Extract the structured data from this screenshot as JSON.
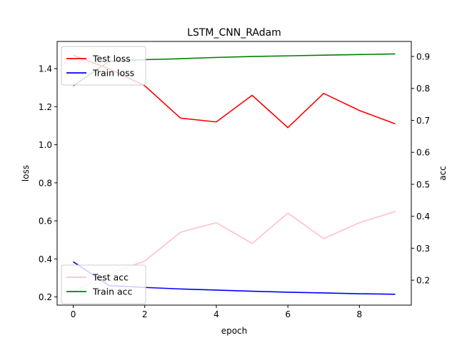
{
  "chart_data": {
    "type": "line",
    "title": "LSTM_CNN_RAdam",
    "xlabel": "epoch",
    "ylabel_left": "loss",
    "ylabel_right": "acc",
    "x": [
      0,
      1,
      2,
      3,
      4,
      5,
      6,
      7,
      8,
      9
    ],
    "xlim": [
      -0.45,
      9.45
    ],
    "ylim_left": [
      0.157,
      1.543
    ],
    "ylim_right": [
      0.122,
      0.947
    ],
    "xticks": [
      0,
      2,
      4,
      6,
      8
    ],
    "yticks_left": [
      0.2,
      0.4,
      0.6,
      0.8,
      1.0,
      1.2,
      1.4
    ],
    "yticks_right": [
      0.2,
      0.3,
      0.4,
      0.5,
      0.6,
      0.7,
      0.8,
      0.9
    ],
    "left_series": [
      {
        "name": "Test loss",
        "color": "#ff0000",
        "values": [
          1.47,
          1.4,
          1.31,
          1.14,
          1.12,
          1.26,
          1.09,
          1.27,
          1.18,
          1.11
        ]
      },
      {
        "name": "Train loss",
        "color": "#0000ff",
        "values": [
          0.385,
          0.26,
          0.25,
          0.242,
          0.236,
          0.23,
          0.225,
          0.221,
          0.217,
          0.214
        ]
      }
    ],
    "right_series": [
      {
        "name": "Test acc",
        "color": "#ffc0cb",
        "values": [
          0.165,
          0.22,
          0.26,
          0.35,
          0.38,
          0.315,
          0.41,
          0.33,
          0.38,
          0.415
        ]
      },
      {
        "name": "Train acc",
        "color": "#008000",
        "values": [
          0.808,
          0.885,
          0.89,
          0.893,
          0.897,
          0.9,
          0.902,
          0.904,
          0.906,
          0.908
        ]
      }
    ],
    "legend_left": {
      "placement": "upper-left"
    },
    "legend_right": {
      "placement": "lower-left"
    },
    "grid": false
  }
}
